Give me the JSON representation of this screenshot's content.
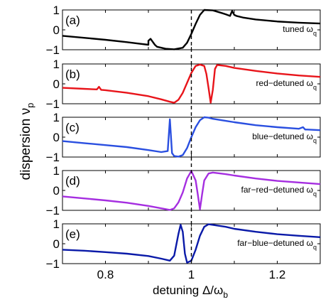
{
  "chart_data": [
    {
      "type": "line",
      "panel_label": "(a)",
      "annotation": "tuned ω",
      "annotation_sub": "q",
      "color": "#000000",
      "xlim": [
        0.7,
        1.3
      ],
      "ylim": [
        -1,
        1
      ],
      "yticks": [
        "1",
        "0",
        "−1"
      ],
      "series": [
        {
          "x": [
            0.7,
            0.75,
            0.8,
            0.85,
            0.88,
            0.9,
            0.9,
            0.905,
            0.91,
            0.915,
            0.92,
            0.94,
            0.96,
            0.98,
            0.99,
            1.0,
            1.01,
            1.02,
            1.03,
            1.05,
            1.07,
            1.08,
            1.09,
            1.095,
            1.1,
            1.105,
            1.12,
            1.15,
            1.2,
            1.25,
            1.3
          ],
          "y": [
            -0.3,
            -0.4,
            -0.5,
            -0.62,
            -0.7,
            -0.75,
            -0.55,
            -0.45,
            -0.6,
            -0.75,
            -0.85,
            -0.95,
            -0.98,
            -0.9,
            -0.65,
            -0.2,
            0.3,
            0.75,
            1.0,
            0.98,
            0.85,
            0.78,
            0.7,
            0.95,
            0.75,
            0.7,
            0.62,
            0.52,
            0.42,
            0.36,
            0.32
          ]
        }
      ]
    },
    {
      "type": "line",
      "panel_label": "(b)",
      "annotation": "red−detuned ω",
      "annotation_sub": "q",
      "color": "#e8141a",
      "xlim": [
        0.7,
        1.3
      ],
      "ylim": [
        -1,
        1
      ],
      "yticks": [
        "1",
        "0",
        "−1"
      ],
      "series": [
        {
          "x": [
            0.7,
            0.75,
            0.78,
            0.785,
            0.79,
            0.8,
            0.85,
            0.9,
            0.93,
            0.95,
            0.96,
            0.97,
            0.98,
            0.99,
            1.0,
            1.01,
            1.02,
            1.03,
            1.035,
            1.04,
            1.045,
            1.05,
            1.055,
            1.06,
            1.08,
            1.1,
            1.15,
            1.2,
            1.25,
            1.3
          ],
          "y": [
            -0.2,
            -0.25,
            -0.28,
            -0.15,
            -0.3,
            -0.32,
            -0.45,
            -0.62,
            -0.78,
            -0.9,
            -0.95,
            -0.8,
            -0.45,
            0.05,
            0.55,
            0.9,
            0.97,
            0.9,
            0.5,
            -0.2,
            -0.95,
            -0.3,
            0.75,
            0.95,
            0.9,
            0.8,
            0.65,
            0.52,
            0.42,
            0.35
          ]
        }
      ]
    },
    {
      "type": "line",
      "panel_label": "(c)",
      "annotation": "blue−detuned ω",
      "annotation_sub": "q",
      "color": "#2a4fe0",
      "xlim": [
        0.7,
        1.3
      ],
      "ylim": [
        -1,
        1
      ],
      "yticks": [
        "1",
        "0",
        "−1"
      ],
      "series": [
        {
          "x": [
            0.7,
            0.75,
            0.8,
            0.85,
            0.9,
            0.93,
            0.945,
            0.95,
            0.955,
            0.96,
            0.97,
            0.98,
            0.99,
            1.0,
            1.01,
            1.02,
            1.03,
            1.04,
            1.05,
            1.08,
            1.1,
            1.15,
            1.2,
            1.25,
            1.26,
            1.265,
            1.27,
            1.3
          ],
          "y": [
            -0.2,
            -0.3,
            -0.4,
            -0.5,
            -0.65,
            -0.75,
            -0.7,
            0.9,
            -0.8,
            -0.95,
            -0.98,
            -0.9,
            -0.55,
            0.0,
            0.5,
            0.85,
            1.0,
            0.98,
            0.92,
            0.82,
            0.75,
            0.6,
            0.5,
            0.42,
            0.5,
            0.38,
            0.38,
            0.35
          ]
        }
      ]
    },
    {
      "type": "line",
      "panel_label": "(d)",
      "annotation": "far−red−detuned ω",
      "annotation_sub": "q",
      "color": "#a52ee0",
      "xlim": [
        0.7,
        1.3
      ],
      "ylim": [
        -1,
        1
      ],
      "yticks": [
        "1",
        "0",
        "−1"
      ],
      "series": [
        {
          "x": [
            0.7,
            0.75,
            0.8,
            0.85,
            0.9,
            0.93,
            0.95,
            0.96,
            0.97,
            0.98,
            0.99,
            1.0,
            1.01,
            1.015,
            1.02,
            1.025,
            1.03,
            1.04,
            1.05,
            1.08,
            1.1,
            1.15,
            1.2,
            1.25,
            1.3
          ],
          "y": [
            -0.3,
            -0.4,
            -0.5,
            -0.62,
            -0.78,
            -0.9,
            -0.98,
            -0.9,
            -0.6,
            -0.1,
            0.6,
            0.98,
            0.5,
            -0.2,
            -0.95,
            -0.2,
            0.5,
            0.85,
            0.9,
            0.82,
            0.75,
            0.6,
            0.48,
            0.4,
            0.32
          ]
        }
      ]
    },
    {
      "type": "line",
      "panel_label": "(e)",
      "annotation": "far−blue−detuned ω",
      "annotation_sub": "q",
      "color": "#0a1aa8",
      "xlim": [
        0.7,
        1.3
      ],
      "ylim": [
        -1,
        1
      ],
      "yticks": [
        "1",
        "0",
        "−1"
      ],
      "xticks": [
        "0.8",
        "1",
        "1.2"
      ],
      "series": [
        {
          "x": [
            0.7,
            0.75,
            0.8,
            0.85,
            0.9,
            0.93,
            0.95,
            0.96,
            0.97,
            0.975,
            0.98,
            0.985,
            0.99,
            1.0,
            1.01,
            1.02,
            1.03,
            1.04,
            1.05,
            1.08,
            1.1,
            1.15,
            1.2,
            1.25,
            1.3
          ],
          "y": [
            -0.3,
            -0.35,
            -0.42,
            -0.5,
            -0.62,
            -0.75,
            -0.85,
            -0.6,
            0.5,
            0.95,
            0.6,
            -0.5,
            -0.95,
            -0.85,
            -0.3,
            0.4,
            0.85,
            0.98,
            0.95,
            0.85,
            0.75,
            0.6,
            0.48,
            0.4,
            0.33
          ]
        }
      ]
    }
  ],
  "axes": {
    "ylabel": "dispersion ν",
    "ylabel_sub": "p",
    "xlabel": "detuning Δ/ω",
    "xlabel_sub": "b",
    "vline_x": 1.0
  }
}
